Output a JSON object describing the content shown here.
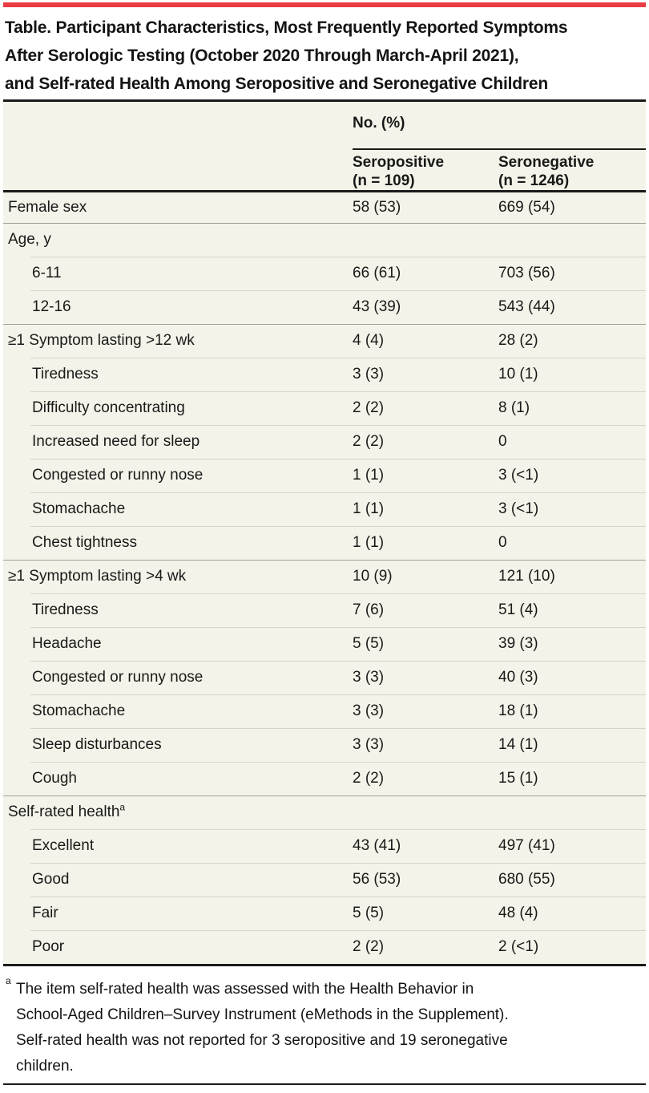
{
  "accent_color": "#e83c42",
  "title": {
    "lines": [
      "Table. Participant Characteristics, Most Frequently Reported Symptoms",
      "After Serologic Testing (October 2020 Through March-April 2021),",
      "and Self-rated Health Among Seropositive and Seronegative Children"
    ]
  },
  "table": {
    "header": {
      "group_label": "No. (%)",
      "columns": [
        {
          "line1": "Seropositive",
          "line2": "(n = 109)"
        },
        {
          "line1": "Seronegative",
          "line2": "(n = 1246)"
        }
      ]
    },
    "rows": [
      {
        "label": "Female sex",
        "indent": 0,
        "divider": "none",
        "values": [
          "58 (53)",
          "669 (54)"
        ]
      },
      {
        "label": "Age, y",
        "indent": 0,
        "divider": "full",
        "values": [
          "",
          ""
        ]
      },
      {
        "label": "6-11",
        "indent": 1,
        "divider": "inset",
        "values": [
          "66 (61)",
          "703 (56)"
        ]
      },
      {
        "label": "12-16",
        "indent": 1,
        "divider": "inset",
        "values": [
          "43 (39)",
          "543 (44)"
        ]
      },
      {
        "label": "≥1 Symptom lasting >12 wk",
        "indent": 0,
        "divider": "full",
        "values": [
          "4 (4)",
          "28 (2)"
        ]
      },
      {
        "label": "Tiredness",
        "indent": 1,
        "divider": "inset",
        "values": [
          "3 (3)",
          "10 (1)"
        ]
      },
      {
        "label": "Difficulty concentrating",
        "indent": 1,
        "divider": "inset",
        "values": [
          "2 (2)",
          "8 (1)"
        ]
      },
      {
        "label": "Increased need for sleep",
        "indent": 1,
        "divider": "inset",
        "values": [
          "2 (2)",
          "0"
        ]
      },
      {
        "label": "Congested or runny nose",
        "indent": 1,
        "divider": "inset",
        "values": [
          "1 (1)",
          "3 (<1)"
        ]
      },
      {
        "label": "Stomachache",
        "indent": 1,
        "divider": "inset",
        "values": [
          "1 (1)",
          "3 (<1)"
        ]
      },
      {
        "label": "Chest tightness",
        "indent": 1,
        "divider": "inset",
        "values": [
          "1 (1)",
          "0"
        ]
      },
      {
        "label": "≥1 Symptom lasting >4 wk",
        "indent": 0,
        "divider": "full",
        "values": [
          "10 (9)",
          "121 (10)"
        ]
      },
      {
        "label": "Tiredness",
        "indent": 1,
        "divider": "inset",
        "values": [
          "7 (6)",
          "51 (4)"
        ]
      },
      {
        "label": "Headache",
        "indent": 1,
        "divider": "inset",
        "values": [
          "5 (5)",
          "39 (3)"
        ]
      },
      {
        "label": "Congested or runny nose",
        "indent": 1,
        "divider": "inset",
        "values": [
          "3 (3)",
          "40 (3)"
        ]
      },
      {
        "label": "Stomachache",
        "indent": 1,
        "divider": "inset",
        "values": [
          "3 (3)",
          "18 (1)"
        ]
      },
      {
        "label": "Sleep disturbances",
        "indent": 1,
        "divider": "inset",
        "values": [
          "3 (3)",
          "14 (1)"
        ]
      },
      {
        "label": "Cough",
        "indent": 1,
        "divider": "inset",
        "values": [
          "2 (2)",
          "15 (1)"
        ]
      },
      {
        "label": "Self-rated health",
        "sup": "a",
        "indent": 0,
        "divider": "full",
        "values": [
          "",
          ""
        ]
      },
      {
        "label": "Excellent",
        "indent": 1,
        "divider": "inset",
        "values": [
          "43 (41)",
          "497 (41)"
        ]
      },
      {
        "label": "Good",
        "indent": 1,
        "divider": "inset",
        "values": [
          "56 (53)",
          "680 (55)"
        ]
      },
      {
        "label": "Fair",
        "indent": 1,
        "divider": "inset",
        "values": [
          "5 (5)",
          "48 (4)"
        ]
      },
      {
        "label": "Poor",
        "indent": 1,
        "divider": "inset",
        "values": [
          "2 (2)",
          "2 (<1)"
        ]
      }
    ]
  },
  "footnote": {
    "marker": "a",
    "lines": [
      "The item self-rated health was assessed with the Health Behavior in",
      "School-Aged Children–Survey Instrument (eMethods in the Supplement).",
      "Self-rated health was not reported for 3 seropositive and 19 seronegative",
      "children."
    ]
  }
}
